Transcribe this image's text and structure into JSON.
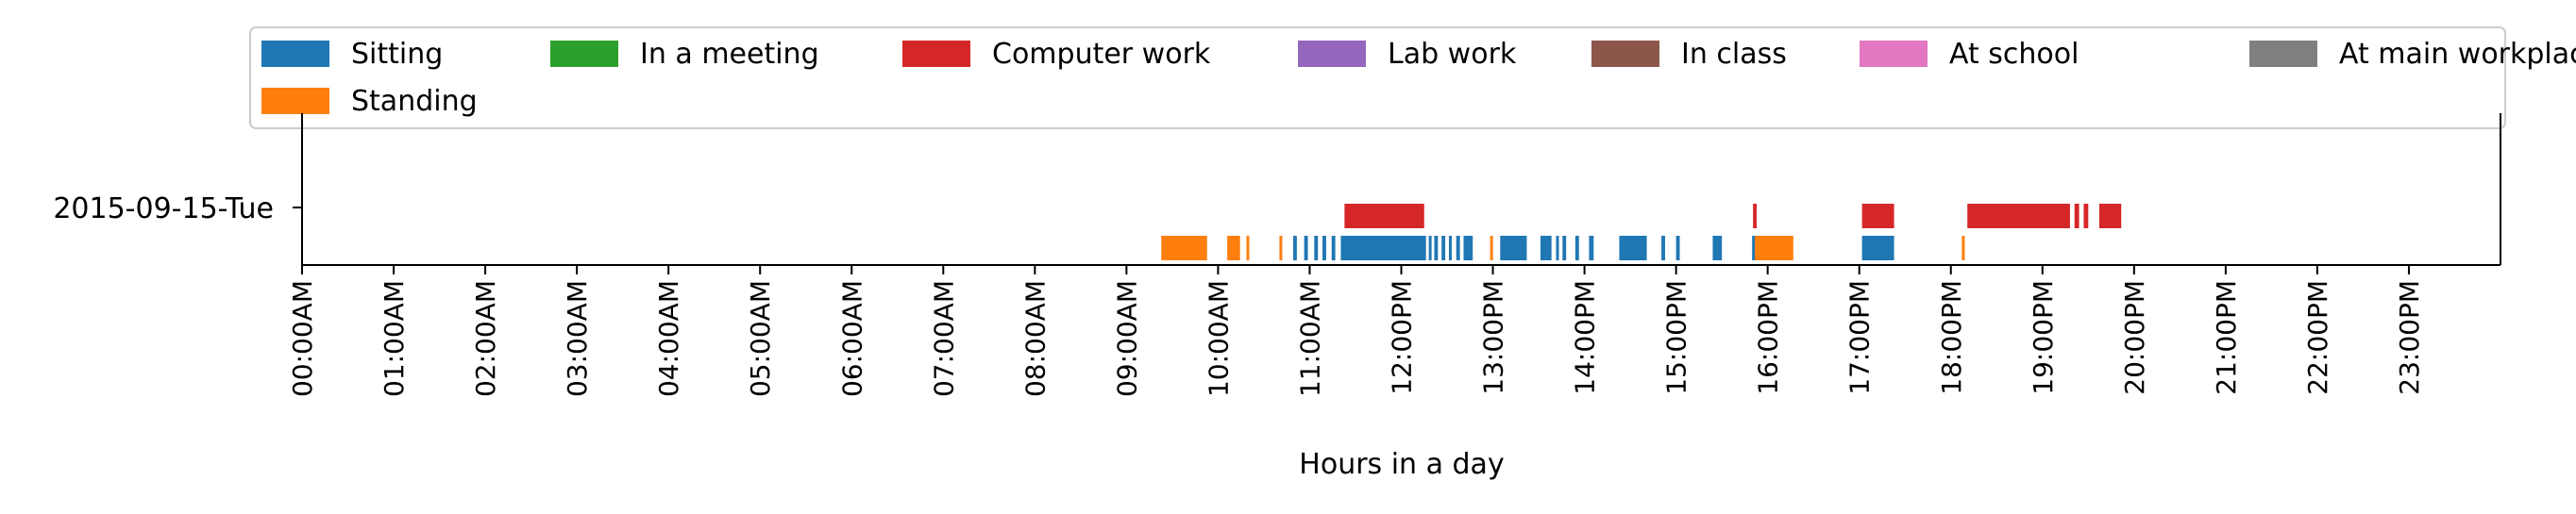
{
  "chart_data": {
    "type": "timeline",
    "title": "",
    "xlabel": "Hours in a day",
    "ylabel": "",
    "xlim_hours": [
      0,
      24
    ],
    "y_categories": [
      "2015-09-15-Tue"
    ],
    "x_tick_labels": [
      "00:00AM",
      "01:00AM",
      "02:00AM",
      "03:00AM",
      "04:00AM",
      "05:00AM",
      "06:00AM",
      "07:00AM",
      "08:00AM",
      "09:00AM",
      "10:00AM",
      "11:00AM",
      "12:00PM",
      "13:00PM",
      "14:00PM",
      "15:00PM",
      "16:00PM",
      "17:00PM",
      "18:00PM",
      "19:00PM",
      "20:00PM",
      "21:00PM",
      "22:00PM",
      "23:00PM"
    ],
    "legend_position": "top",
    "grid": false,
    "legend": [
      {
        "label": "Sitting",
        "color": "#1f77b4"
      },
      {
        "label": "Standing",
        "color": "#ff7f0e"
      },
      {
        "label": "In a meeting",
        "color": "#2ca02c"
      },
      {
        "label": "Computer work",
        "color": "#d62728"
      },
      {
        "label": "Lab work",
        "color": "#9467bd"
      },
      {
        "label": "In class",
        "color": "#8c564b"
      },
      {
        "label": "At school",
        "color": "#e377c2"
      },
      {
        "label": "At main workplace",
        "color": "#7f7f7f"
      }
    ],
    "series": [
      {
        "name": "Sitting",
        "lane": "bottom",
        "color": "#1f77b4",
        "intervals": [
          [
            10.82,
            10.86
          ],
          [
            10.94,
            10.98
          ],
          [
            11.05,
            11.09
          ],
          [
            11.14,
            11.18
          ],
          [
            11.24,
            11.28
          ],
          [
            11.34,
            12.27
          ],
          [
            12.3,
            12.33
          ],
          [
            12.36,
            12.4
          ],
          [
            12.44,
            12.48
          ],
          [
            12.52,
            12.55
          ],
          [
            12.6,
            12.64
          ],
          [
            12.68,
            12.78
          ],
          [
            13.08,
            13.37
          ],
          [
            13.52,
            13.64
          ],
          [
            13.69,
            13.72
          ],
          [
            13.76,
            13.8
          ],
          [
            13.9,
            13.94
          ],
          [
            14.05,
            14.1
          ],
          [
            14.38,
            14.68
          ],
          [
            14.84,
            14.88
          ],
          [
            15.0,
            15.04
          ],
          [
            15.4,
            15.5
          ],
          [
            15.83,
            15.88
          ],
          [
            17.03,
            17.38
          ]
        ]
      },
      {
        "name": "Standing",
        "lane": "bottom",
        "color": "#ff7f0e",
        "intervals": [
          [
            9.38,
            9.88
          ],
          [
            10.1,
            10.24
          ],
          [
            10.31,
            10.34
          ],
          [
            10.67,
            10.7
          ],
          [
            12.97,
            13.0
          ],
          [
            15.86,
            16.28
          ],
          [
            18.12,
            18.15
          ]
        ]
      },
      {
        "name": "Computer work",
        "lane": "top",
        "color": "#d62728",
        "intervals": [
          [
            11.38,
            12.25
          ],
          [
            15.84,
            15.88
          ],
          [
            17.03,
            17.38
          ],
          [
            18.18,
            19.3
          ],
          [
            19.35,
            19.4
          ],
          [
            19.45,
            19.5
          ],
          [
            19.62,
            19.86
          ]
        ]
      }
    ]
  }
}
